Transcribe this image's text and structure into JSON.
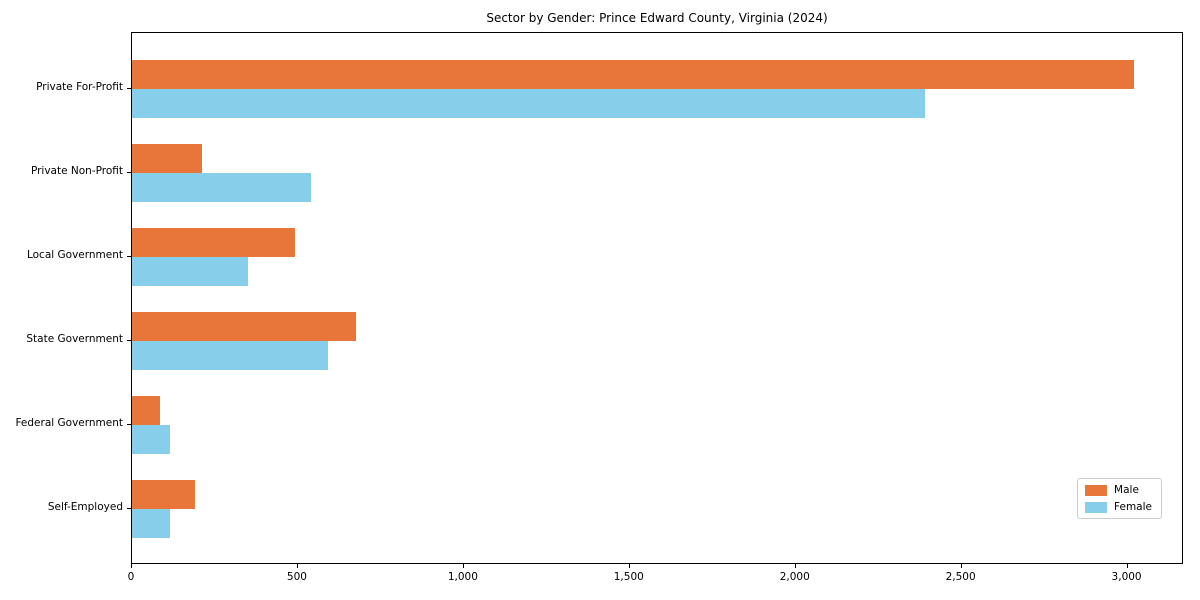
{
  "title": "Sector by Gender: Prince Edward County, Virginia (2024)",
  "chart_data": {
    "type": "bar",
    "orientation": "horizontal",
    "title": "Sector by Gender: Prince Edward County, Virginia (2024)",
    "categories": [
      "Private For-Profit",
      "Private Non-Profit",
      "Local Government",
      "State Government",
      "Federal Government",
      "Self-Employed"
    ],
    "series": [
      {
        "name": "Male",
        "color": "#e8763b",
        "values": [
          3020,
          210,
          490,
          675,
          85,
          190
        ]
      },
      {
        "name": "Female",
        "color": "#87ceeb",
        "values": [
          2390,
          540,
          350,
          590,
          115,
          115
        ]
      }
    ],
    "xlabel": "",
    "ylabel": "",
    "xlim": [
      0,
      3170
    ],
    "xticks": [
      0,
      500,
      1000,
      1500,
      2000,
      2500,
      3000
    ],
    "xtick_labels": [
      "0",
      "500",
      "1,000",
      "1,500",
      "2,000",
      "2,500",
      "3,000"
    ],
    "grid": false,
    "legend_position": "lower right",
    "legend_labels": [
      "Male",
      "Female"
    ]
  }
}
